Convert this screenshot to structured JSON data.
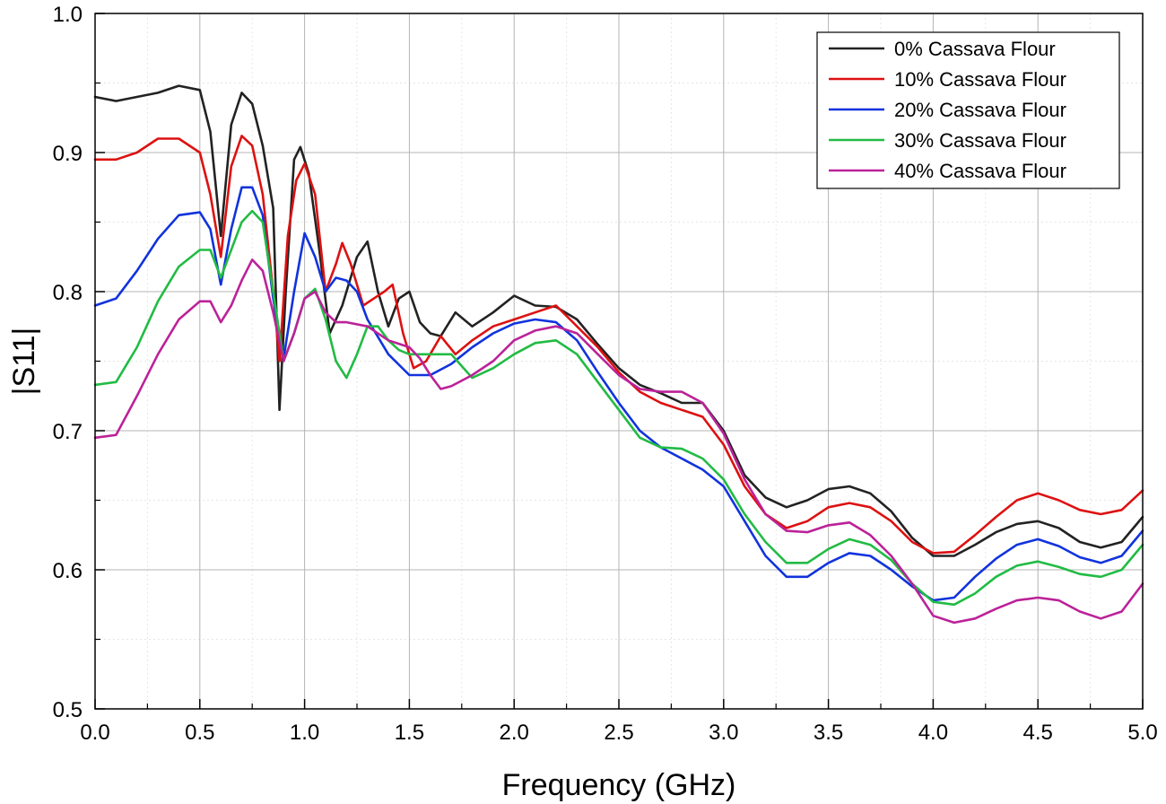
{
  "chart_data": {
    "type": "line",
    "title": "",
    "xlabel": "Frequency (GHz)",
    "ylabel": "|S11|",
    "xlim": [
      0.0,
      5.0
    ],
    "ylim": [
      0.5,
      1.0
    ],
    "x_ticks": [
      "0.0",
      "0.5",
      "1.0",
      "1.5",
      "2.0",
      "2.5",
      "3.0",
      "3.5",
      "4.0",
      "4.5",
      "5.0"
    ],
    "y_ticks": [
      "0.5",
      "0.6",
      "0.7",
      "0.8",
      "0.9",
      "1.0"
    ],
    "grid": true,
    "legend_position": "top-right",
    "series": [
      {
        "name": "0% Cassava Flour",
        "color": "#222222",
        "points": [
          [
            0.0,
            0.94
          ],
          [
            0.1,
            0.937
          ],
          [
            0.2,
            0.94
          ],
          [
            0.3,
            0.943
          ],
          [
            0.4,
            0.948
          ],
          [
            0.5,
            0.945
          ],
          [
            0.55,
            0.915
          ],
          [
            0.6,
            0.84
          ],
          [
            0.65,
            0.92
          ],
          [
            0.7,
            0.943
          ],
          [
            0.75,
            0.935
          ],
          [
            0.8,
            0.905
          ],
          [
            0.85,
            0.86
          ],
          [
            0.88,
            0.715
          ],
          [
            0.91,
            0.8
          ],
          [
            0.95,
            0.895
          ],
          [
            0.98,
            0.904
          ],
          [
            1.02,
            0.885
          ],
          [
            1.07,
            0.83
          ],
          [
            1.12,
            0.77
          ],
          [
            1.18,
            0.79
          ],
          [
            1.25,
            0.825
          ],
          [
            1.3,
            0.836
          ],
          [
            1.35,
            0.8
          ],
          [
            1.4,
            0.775
          ],
          [
            1.45,
            0.795
          ],
          [
            1.5,
            0.8
          ],
          [
            1.55,
            0.778
          ],
          [
            1.6,
            0.77
          ],
          [
            1.65,
            0.768
          ],
          [
            1.72,
            0.785
          ],
          [
            1.8,
            0.775
          ],
          [
            1.9,
            0.785
          ],
          [
            2.0,
            0.797
          ],
          [
            2.1,
            0.79
          ],
          [
            2.2,
            0.789
          ],
          [
            2.3,
            0.78
          ],
          [
            2.4,
            0.762
          ],
          [
            2.5,
            0.745
          ],
          [
            2.6,
            0.733
          ],
          [
            2.7,
            0.727
          ],
          [
            2.8,
            0.72
          ],
          [
            2.9,
            0.72
          ],
          [
            3.0,
            0.7
          ],
          [
            3.1,
            0.668
          ],
          [
            3.2,
            0.652
          ],
          [
            3.3,
            0.645
          ],
          [
            3.4,
            0.65
          ],
          [
            3.5,
            0.658
          ],
          [
            3.6,
            0.66
          ],
          [
            3.7,
            0.655
          ],
          [
            3.8,
            0.642
          ],
          [
            3.9,
            0.623
          ],
          [
            4.0,
            0.61
          ],
          [
            4.1,
            0.61
          ],
          [
            4.2,
            0.618
          ],
          [
            4.3,
            0.627
          ],
          [
            4.4,
            0.633
          ],
          [
            4.5,
            0.635
          ],
          [
            4.6,
            0.63
          ],
          [
            4.7,
            0.62
          ],
          [
            4.8,
            0.616
          ],
          [
            4.9,
            0.62
          ],
          [
            5.0,
            0.638
          ]
        ]
      },
      {
        "name": "10% Cassava Flour",
        "color": "#dd1111",
        "points": [
          [
            0.0,
            0.895
          ],
          [
            0.1,
            0.895
          ],
          [
            0.2,
            0.9
          ],
          [
            0.3,
            0.91
          ],
          [
            0.4,
            0.91
          ],
          [
            0.5,
            0.9
          ],
          [
            0.55,
            0.87
          ],
          [
            0.6,
            0.825
          ],
          [
            0.65,
            0.89
          ],
          [
            0.7,
            0.912
          ],
          [
            0.75,
            0.905
          ],
          [
            0.8,
            0.87
          ],
          [
            0.85,
            0.8
          ],
          [
            0.88,
            0.75
          ],
          [
            0.92,
            0.84
          ],
          [
            0.96,
            0.88
          ],
          [
            1.0,
            0.892
          ],
          [
            1.05,
            0.87
          ],
          [
            1.1,
            0.8
          ],
          [
            1.15,
            0.82
          ],
          [
            1.18,
            0.835
          ],
          [
            1.22,
            0.82
          ],
          [
            1.28,
            0.79
          ],
          [
            1.33,
            0.795
          ],
          [
            1.38,
            0.8
          ],
          [
            1.42,
            0.805
          ],
          [
            1.47,
            0.77
          ],
          [
            1.52,
            0.745
          ],
          [
            1.58,
            0.75
          ],
          [
            1.65,
            0.768
          ],
          [
            1.72,
            0.755
          ],
          [
            1.8,
            0.765
          ],
          [
            1.9,
            0.775
          ],
          [
            2.0,
            0.78
          ],
          [
            2.1,
            0.785
          ],
          [
            2.2,
            0.79
          ],
          [
            2.3,
            0.775
          ],
          [
            2.4,
            0.76
          ],
          [
            2.5,
            0.742
          ],
          [
            2.6,
            0.728
          ],
          [
            2.7,
            0.72
          ],
          [
            2.8,
            0.715
          ],
          [
            2.9,
            0.71
          ],
          [
            3.0,
            0.69
          ],
          [
            3.1,
            0.66
          ],
          [
            3.2,
            0.64
          ],
          [
            3.3,
            0.63
          ],
          [
            3.4,
            0.635
          ],
          [
            3.5,
            0.645
          ],
          [
            3.6,
            0.648
          ],
          [
            3.7,
            0.645
          ],
          [
            3.8,
            0.635
          ],
          [
            3.9,
            0.62
          ],
          [
            4.0,
            0.612
          ],
          [
            4.1,
            0.613
          ],
          [
            4.2,
            0.625
          ],
          [
            4.3,
            0.638
          ],
          [
            4.4,
            0.65
          ],
          [
            4.5,
            0.655
          ],
          [
            4.6,
            0.65
          ],
          [
            4.7,
            0.643
          ],
          [
            4.8,
            0.64
          ],
          [
            4.9,
            0.643
          ],
          [
            5.0,
            0.657
          ]
        ]
      },
      {
        "name": "20% Cassava Flour",
        "color": "#1133dd",
        "points": [
          [
            0.0,
            0.79
          ],
          [
            0.1,
            0.795
          ],
          [
            0.2,
            0.815
          ],
          [
            0.3,
            0.838
          ],
          [
            0.4,
            0.855
          ],
          [
            0.5,
            0.857
          ],
          [
            0.55,
            0.845
          ],
          [
            0.6,
            0.805
          ],
          [
            0.65,
            0.845
          ],
          [
            0.7,
            0.875
          ],
          [
            0.75,
            0.875
          ],
          [
            0.8,
            0.855
          ],
          [
            0.85,
            0.795
          ],
          [
            0.9,
            0.752
          ],
          [
            0.95,
            0.8
          ],
          [
            1.0,
            0.842
          ],
          [
            1.05,
            0.825
          ],
          [
            1.1,
            0.8
          ],
          [
            1.15,
            0.81
          ],
          [
            1.2,
            0.808
          ],
          [
            1.25,
            0.8
          ],
          [
            1.3,
            0.78
          ],
          [
            1.4,
            0.755
          ],
          [
            1.5,
            0.74
          ],
          [
            1.6,
            0.74
          ],
          [
            1.7,
            0.748
          ],
          [
            1.8,
            0.76
          ],
          [
            1.9,
            0.77
          ],
          [
            2.0,
            0.777
          ],
          [
            2.1,
            0.78
          ],
          [
            2.2,
            0.778
          ],
          [
            2.3,
            0.765
          ],
          [
            2.4,
            0.742
          ],
          [
            2.5,
            0.72
          ],
          [
            2.6,
            0.7
          ],
          [
            2.7,
            0.688
          ],
          [
            2.8,
            0.68
          ],
          [
            2.9,
            0.672
          ],
          [
            3.0,
            0.66
          ],
          [
            3.1,
            0.635
          ],
          [
            3.2,
            0.61
          ],
          [
            3.3,
            0.595
          ],
          [
            3.4,
            0.595
          ],
          [
            3.5,
            0.605
          ],
          [
            3.6,
            0.612
          ],
          [
            3.7,
            0.61
          ],
          [
            3.8,
            0.6
          ],
          [
            3.9,
            0.588
          ],
          [
            4.0,
            0.578
          ],
          [
            4.1,
            0.58
          ],
          [
            4.2,
            0.595
          ],
          [
            4.3,
            0.608
          ],
          [
            4.4,
            0.618
          ],
          [
            4.5,
            0.622
          ],
          [
            4.6,
            0.617
          ],
          [
            4.7,
            0.609
          ],
          [
            4.8,
            0.605
          ],
          [
            4.9,
            0.61
          ],
          [
            5.0,
            0.628
          ]
        ]
      },
      {
        "name": "30% Cassava Flour",
        "color": "#22bb44",
        "points": [
          [
            0.0,
            0.733
          ],
          [
            0.1,
            0.735
          ],
          [
            0.2,
            0.76
          ],
          [
            0.3,
            0.793
          ],
          [
            0.4,
            0.818
          ],
          [
            0.5,
            0.83
          ],
          [
            0.55,
            0.83
          ],
          [
            0.6,
            0.81
          ],
          [
            0.65,
            0.83
          ],
          [
            0.7,
            0.85
          ],
          [
            0.75,
            0.858
          ],
          [
            0.8,
            0.85
          ],
          [
            0.85,
            0.8
          ],
          [
            0.9,
            0.75
          ],
          [
            0.95,
            0.77
          ],
          [
            1.0,
            0.795
          ],
          [
            1.05,
            0.802
          ],
          [
            1.1,
            0.78
          ],
          [
            1.15,
            0.75
          ],
          [
            1.2,
            0.738
          ],
          [
            1.25,
            0.755
          ],
          [
            1.3,
            0.775
          ],
          [
            1.35,
            0.775
          ],
          [
            1.4,
            0.765
          ],
          [
            1.45,
            0.758
          ],
          [
            1.5,
            0.755
          ],
          [
            1.6,
            0.755
          ],
          [
            1.7,
            0.755
          ],
          [
            1.8,
            0.738
          ],
          [
            1.9,
            0.745
          ],
          [
            2.0,
            0.755
          ],
          [
            2.1,
            0.763
          ],
          [
            2.2,
            0.765
          ],
          [
            2.3,
            0.755
          ],
          [
            2.4,
            0.735
          ],
          [
            2.5,
            0.715
          ],
          [
            2.6,
            0.695
          ],
          [
            2.7,
            0.688
          ],
          [
            2.8,
            0.687
          ],
          [
            2.9,
            0.68
          ],
          [
            3.0,
            0.665
          ],
          [
            3.1,
            0.64
          ],
          [
            3.2,
            0.62
          ],
          [
            3.3,
            0.605
          ],
          [
            3.4,
            0.605
          ],
          [
            3.5,
            0.615
          ],
          [
            3.6,
            0.622
          ],
          [
            3.7,
            0.618
          ],
          [
            3.8,
            0.607
          ],
          [
            3.9,
            0.59
          ],
          [
            4.0,
            0.577
          ],
          [
            4.1,
            0.575
          ],
          [
            4.2,
            0.583
          ],
          [
            4.3,
            0.595
          ],
          [
            4.4,
            0.603
          ],
          [
            4.5,
            0.606
          ],
          [
            4.6,
            0.602
          ],
          [
            4.7,
            0.597
          ],
          [
            4.8,
            0.595
          ],
          [
            4.9,
            0.6
          ],
          [
            5.0,
            0.618
          ]
        ]
      },
      {
        "name": "40% Cassava Flour",
        "color": "#bb2299",
        "points": [
          [
            0.0,
            0.695
          ],
          [
            0.1,
            0.697
          ],
          [
            0.2,
            0.725
          ],
          [
            0.3,
            0.755
          ],
          [
            0.4,
            0.78
          ],
          [
            0.5,
            0.793
          ],
          [
            0.55,
            0.793
          ],
          [
            0.6,
            0.778
          ],
          [
            0.65,
            0.79
          ],
          [
            0.7,
            0.808
          ],
          [
            0.75,
            0.823
          ],
          [
            0.8,
            0.815
          ],
          [
            0.85,
            0.785
          ],
          [
            0.9,
            0.75
          ],
          [
            0.95,
            0.77
          ],
          [
            1.0,
            0.795
          ],
          [
            1.05,
            0.8
          ],
          [
            1.1,
            0.785
          ],
          [
            1.15,
            0.778
          ],
          [
            1.2,
            0.778
          ],
          [
            1.3,
            0.775
          ],
          [
            1.4,
            0.765
          ],
          [
            1.5,
            0.76
          ],
          [
            1.55,
            0.752
          ],
          [
            1.6,
            0.74
          ],
          [
            1.65,
            0.73
          ],
          [
            1.7,
            0.732
          ],
          [
            1.8,
            0.74
          ],
          [
            1.9,
            0.75
          ],
          [
            2.0,
            0.765
          ],
          [
            2.1,
            0.772
          ],
          [
            2.2,
            0.775
          ],
          [
            2.3,
            0.77
          ],
          [
            2.4,
            0.755
          ],
          [
            2.5,
            0.74
          ],
          [
            2.6,
            0.73
          ],
          [
            2.7,
            0.728
          ],
          [
            2.8,
            0.728
          ],
          [
            2.9,
            0.72
          ],
          [
            3.0,
            0.698
          ],
          [
            3.1,
            0.665
          ],
          [
            3.2,
            0.64
          ],
          [
            3.3,
            0.628
          ],
          [
            3.4,
            0.627
          ],
          [
            3.5,
            0.632
          ],
          [
            3.6,
            0.634
          ],
          [
            3.7,
            0.625
          ],
          [
            3.8,
            0.61
          ],
          [
            3.9,
            0.59
          ],
          [
            4.0,
            0.567
          ],
          [
            4.1,
            0.562
          ],
          [
            4.2,
            0.565
          ],
          [
            4.3,
            0.572
          ],
          [
            4.4,
            0.578
          ],
          [
            4.5,
            0.58
          ],
          [
            4.6,
            0.578
          ],
          [
            4.7,
            0.57
          ],
          [
            4.8,
            0.565
          ],
          [
            4.9,
            0.57
          ],
          [
            5.0,
            0.59
          ]
        ]
      }
    ]
  }
}
